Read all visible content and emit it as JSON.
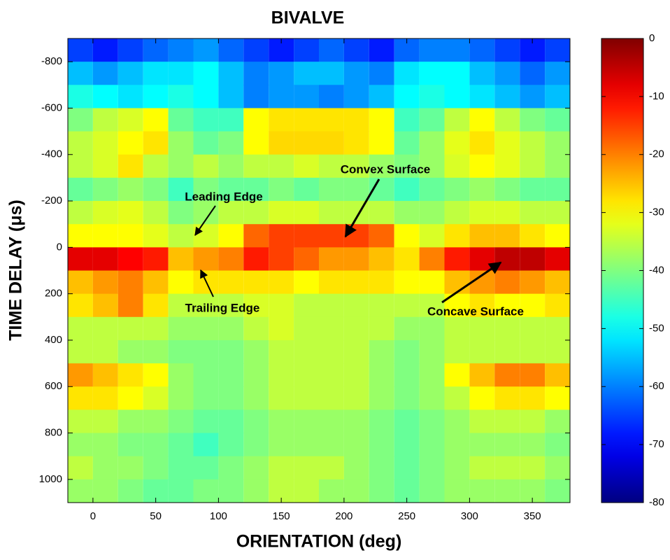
{
  "chart_data": {
    "type": "heatmap",
    "title": "BIVALVE",
    "xlabel": "ORIENTATION (deg)",
    "ylabel": "TIME DELAY (μs)",
    "x": [
      -10,
      10,
      30,
      50,
      70,
      90,
      110,
      130,
      150,
      170,
      190,
      210,
      230,
      250,
      270,
      290,
      310,
      330,
      350,
      370
    ],
    "y": [
      -850,
      -750,
      -650,
      -550,
      -450,
      -350,
      -250,
      -150,
      -50,
      50,
      150,
      250,
      350,
      450,
      550,
      650,
      750,
      850,
      950,
      1050
    ],
    "z": [
      [
        -65,
        -68,
        -65,
        -62,
        -60,
        -58,
        -62,
        -65,
        -68,
        -65,
        -62,
        -65,
        -68,
        -62,
        -60,
        -60,
        -62,
        -65,
        -68,
        -65
      ],
      [
        -55,
        -58,
        -55,
        -52,
        -52,
        -50,
        -55,
        -60,
        -58,
        -55,
        -55,
        -58,
        -60,
        -52,
        -50,
        -50,
        -55,
        -58,
        -62,
        -58
      ],
      [
        -48,
        -50,
        -52,
        -50,
        -48,
        -50,
        -55,
        -60,
        -58,
        -58,
        -60,
        -58,
        -55,
        -50,
        -48,
        -50,
        -52,
        -55,
        -58,
        -55
      ],
      [
        -40,
        -35,
        -33,
        -30,
        -42,
        -45,
        -45,
        -30,
        -28,
        -28,
        -28,
        -28,
        -30,
        -45,
        -42,
        -35,
        -30,
        -35,
        -40,
        -42
      ],
      [
        -35,
        -33,
        -30,
        -28,
        -38,
        -42,
        -40,
        -30,
        -27,
        -27,
        -27,
        -28,
        -30,
        -42,
        -38,
        -32,
        -28,
        -32,
        -35,
        -38
      ],
      [
        -35,
        -33,
        -28,
        -35,
        -38,
        -35,
        -38,
        -35,
        -35,
        -33,
        -35,
        -35,
        -38,
        -40,
        -38,
        -33,
        -30,
        -32,
        -35,
        -38
      ],
      [
        -42,
        -40,
        -38,
        -40,
        -45,
        -40,
        -42,
        -42,
        -40,
        -42,
        -40,
        -40,
        -42,
        -45,
        -42,
        -40,
        -38,
        -40,
        -42,
        -42
      ],
      [
        -35,
        -33,
        -32,
        -35,
        -40,
        -38,
        -35,
        -35,
        -33,
        -33,
        -35,
        -35,
        -35,
        -38,
        -38,
        -35,
        -33,
        -33,
        -35,
        -35
      ],
      [
        -30,
        -30,
        -30,
        -32,
        -35,
        -33,
        -30,
        -18,
        -15,
        -15,
        -15,
        -15,
        -18,
        -30,
        -33,
        -28,
        -25,
        -25,
        -28,
        -30
      ],
      [
        -8,
        -8,
        -10,
        -12,
        -25,
        -22,
        -20,
        -12,
        -15,
        -18,
        -22,
        -22,
        -25,
        -28,
        -20,
        -12,
        -8,
        -5,
        -5,
        -8
      ],
      [
        -25,
        -22,
        -20,
        -25,
        -30,
        -28,
        -28,
        -28,
        -28,
        -30,
        -28,
        -28,
        -28,
        -30,
        -30,
        -25,
        -22,
        -20,
        -22,
        -25
      ],
      [
        -28,
        -25,
        -20,
        -28,
        -35,
        -35,
        -35,
        -33,
        -33,
        -35,
        -35,
        -35,
        -35,
        -35,
        -35,
        -30,
        -28,
        -30,
        -30,
        -28
      ],
      [
        -35,
        -35,
        -35,
        -35,
        -38,
        -38,
        -38,
        -35,
        -33,
        -35,
        -35,
        -35,
        -35,
        -38,
        -38,
        -35,
        -35,
        -35,
        -35,
        -35
      ],
      [
        -35,
        -35,
        -38,
        -38,
        -40,
        -40,
        -40,
        -38,
        -35,
        -35,
        -35,
        -35,
        -38,
        -40,
        -38,
        -35,
        -35,
        -35,
        -35,
        -35
      ],
      [
        -22,
        -25,
        -28,
        -30,
        -38,
        -40,
        -40,
        -38,
        -35,
        -35,
        -35,
        -35,
        -38,
        -40,
        -38,
        -30,
        -25,
        -20,
        -20,
        -25
      ],
      [
        -28,
        -28,
        -30,
        -33,
        -38,
        -40,
        -40,
        -38,
        -35,
        -35,
        -35,
        -35,
        -38,
        -40,
        -38,
        -35,
        -30,
        -28,
        -28,
        -30
      ],
      [
        -35,
        -35,
        -38,
        -38,
        -40,
        -42,
        -42,
        -40,
        -38,
        -38,
        -38,
        -38,
        -40,
        -42,
        -40,
        -38,
        -35,
        -35,
        -35,
        -38
      ],
      [
        -38,
        -38,
        -40,
        -40,
        -42,
        -45,
        -42,
        -40,
        -38,
        -38,
        -38,
        -38,
        -40,
        -42,
        -40,
        -38,
        -38,
        -38,
        -38,
        -40
      ],
      [
        -35,
        -38,
        -38,
        -40,
        -42,
        -42,
        -40,
        -38,
        -35,
        -35,
        -35,
        -38,
        -40,
        -42,
        -40,
        -38,
        -35,
        -35,
        -35,
        -38
      ],
      [
        -38,
        -38,
        -40,
        -42,
        -42,
        -40,
        -40,
        -38,
        -35,
        -35,
        -38,
        -38,
        -40,
        -42,
        -40,
        -38,
        -38,
        -38,
        -38,
        -40
      ]
    ],
    "xlim": [
      -20,
      380
    ],
    "xticks": [
      0,
      50,
      100,
      150,
      200,
      250,
      300,
      350
    ],
    "ylim": [
      -900,
      1100
    ],
    "yticks": [
      -800,
      -600,
      -400,
      -200,
      0,
      200,
      400,
      600,
      800,
      1000
    ],
    "y_inverted": true,
    "colormap": "jet",
    "clim": [
      -80,
      0
    ],
    "cticks": [
      0,
      -10,
      -20,
      -30,
      -40,
      -50,
      -60,
      -70,
      -80
    ],
    "annotations": [
      "Convex Surface",
      "Leading Edge",
      "Trailing Edge",
      "Concave Surface"
    ]
  }
}
